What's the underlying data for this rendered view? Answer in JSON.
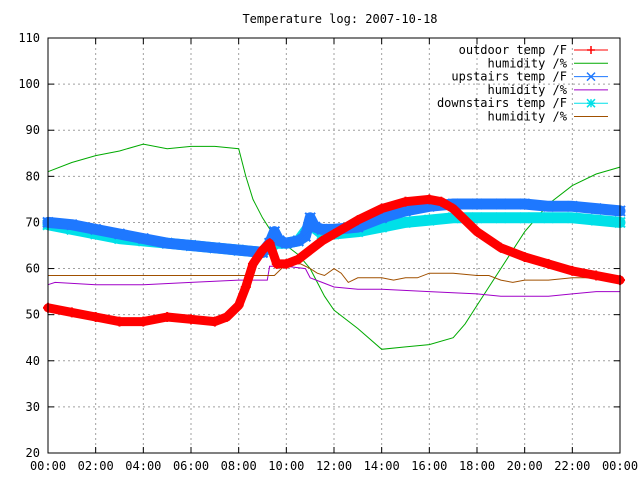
{
  "chart_data": {
    "type": "line",
    "title": "Temperature log: 2007-10-18",
    "xlabel": "",
    "ylabel": "",
    "xlim": [
      0,
      24
    ],
    "ylim": [
      20,
      110
    ],
    "grid": true,
    "legend_position": "top-right",
    "x_tick_labels": [
      "00:00",
      "02:00",
      "04:00",
      "06:00",
      "08:00",
      "10:00",
      "12:00",
      "14:00",
      "16:00",
      "18:00",
      "20:00",
      "22:00",
      "00:00"
    ],
    "y_tick_labels": [
      "20",
      "30",
      "40",
      "50",
      "60",
      "70",
      "80",
      "90",
      "100",
      "110"
    ],
    "series": [
      {
        "name": "outdoor temp /F",
        "color": "#ff0000",
        "marker": "plus",
        "x": [
          0,
          1,
          2,
          3,
          4,
          5,
          6,
          7,
          7.5,
          8,
          8.3,
          8.6,
          9,
          9.3,
          9.6,
          10,
          10.5,
          11,
          11.5,
          12,
          13,
          14,
          15,
          16,
          16.5,
          17,
          18,
          19,
          20,
          21,
          22,
          23,
          24
        ],
        "y": [
          51.5,
          50.5,
          49.5,
          48.5,
          48.5,
          49.5,
          49,
          48.5,
          49.5,
          52,
          56,
          61,
          64,
          65.5,
          61,
          61,
          62,
          64,
          66,
          67.5,
          70.5,
          73,
          74.5,
          75,
          74.5,
          73,
          68,
          64.5,
          62.5,
          61,
          59.5,
          58.5,
          57.5
        ]
      },
      {
        "name": "humidity /%",
        "color": "#00aa00",
        "marker": "none",
        "x": [
          0,
          1,
          2,
          3,
          4,
          5,
          6,
          7,
          8,
          8.3,
          8.6,
          9,
          9.5,
          10,
          10.5,
          11,
          11.3,
          11.6,
          12,
          13,
          14,
          15,
          16,
          17,
          17.5,
          18,
          19,
          20,
          21,
          22,
          23,
          24
        ],
        "y": [
          81,
          83,
          84.5,
          85.5,
          87,
          86,
          86.5,
          86.5,
          86,
          80,
          75,
          71,
          67,
          65,
          63,
          60,
          57,
          54,
          51,
          47,
          42.5,
          43,
          43.5,
          45,
          48,
          52,
          60,
          68,
          74,
          78,
          80.5,
          82
        ]
      },
      {
        "name": "upstairs temp /F",
        "color": "#1e78ff",
        "marker": "x",
        "x": [
          0,
          1,
          2,
          3,
          4,
          5,
          6,
          7,
          8,
          9,
          9.3,
          9.5,
          9.7,
          10,
          10.5,
          10.8,
          11,
          11.2,
          11.5,
          12,
          13,
          14,
          15,
          16,
          17,
          18,
          19,
          20,
          21,
          22,
          23,
          24
        ],
        "y": [
          70,
          69.5,
          68.5,
          67.5,
          66.5,
          65.5,
          65,
          64.5,
          64,
          63.5,
          65.5,
          68,
          66,
          65.5,
          66,
          67,
          71,
          69,
          68.5,
          68.5,
          69,
          71,
          72.5,
          73.5,
          74,
          74,
          74,
          74,
          73.5,
          73.5,
          73,
          72.5
        ]
      },
      {
        "name": "humidity /%",
        "color": "#a000c8",
        "marker": "none",
        "x": [
          0,
          0.3,
          2,
          4,
          6,
          8,
          9.2,
          9.3,
          10,
          10.8,
          11,
          11.5,
          12,
          13,
          14,
          16,
          18,
          19,
          20,
          21,
          22,
          23,
          24
        ],
        "y": [
          56.5,
          57,
          56.5,
          56.5,
          57,
          57.5,
          57.5,
          60.5,
          60.5,
          60,
          58,
          57,
          56,
          55.5,
          55.5,
          55,
          54.5,
          54,
          54,
          54,
          54.5,
          55,
          55
        ]
      },
      {
        "name": "downstairs temp /F",
        "color": "#00e0e8",
        "marker": "star",
        "x": [
          0,
          1,
          2,
          3,
          4,
          5,
          6,
          7,
          8,
          9,
          9.3,
          9.6,
          10,
          10.5,
          11,
          11.5,
          12,
          13,
          14,
          15,
          16,
          17,
          18,
          19,
          20,
          21,
          22,
          23,
          24
        ],
        "y": [
          69.5,
          68.5,
          67.5,
          66.5,
          66,
          65.5,
          65,
          64.5,
          64,
          63.5,
          64.5,
          65.5,
          65.5,
          66,
          69.5,
          67.5,
          67.5,
          68,
          69,
          70,
          70.5,
          71,
          71,
          71,
          71,
          71,
          71,
          70.5,
          70
        ]
      },
      {
        "name": "humidity /%",
        "color": "#a05000",
        "marker": "none",
        "x": [
          0,
          1,
          2,
          3,
          4,
          5,
          6,
          7,
          8,
          9,
          9.5,
          10,
          10.6,
          11,
          11.3,
          11.6,
          12,
          12.3,
          12.6,
          13,
          13.5,
          14,
          14.5,
          15,
          15.5,
          16,
          17,
          18,
          18.5,
          19,
          19.5,
          20,
          21,
          22,
          23,
          24
        ],
        "y": [
          58.5,
          58.5,
          58.5,
          58.5,
          58.5,
          58.5,
          58.5,
          58.5,
          58.5,
          58.5,
          58.5,
          61,
          61,
          60,
          59,
          58.5,
          60,
          59,
          57,
          58,
          58,
          58,
          57.5,
          58,
          58,
          59,
          59,
          58.5,
          58.5,
          57.5,
          57,
          57.5,
          57.5,
          58,
          58,
          58
        ]
      }
    ]
  }
}
